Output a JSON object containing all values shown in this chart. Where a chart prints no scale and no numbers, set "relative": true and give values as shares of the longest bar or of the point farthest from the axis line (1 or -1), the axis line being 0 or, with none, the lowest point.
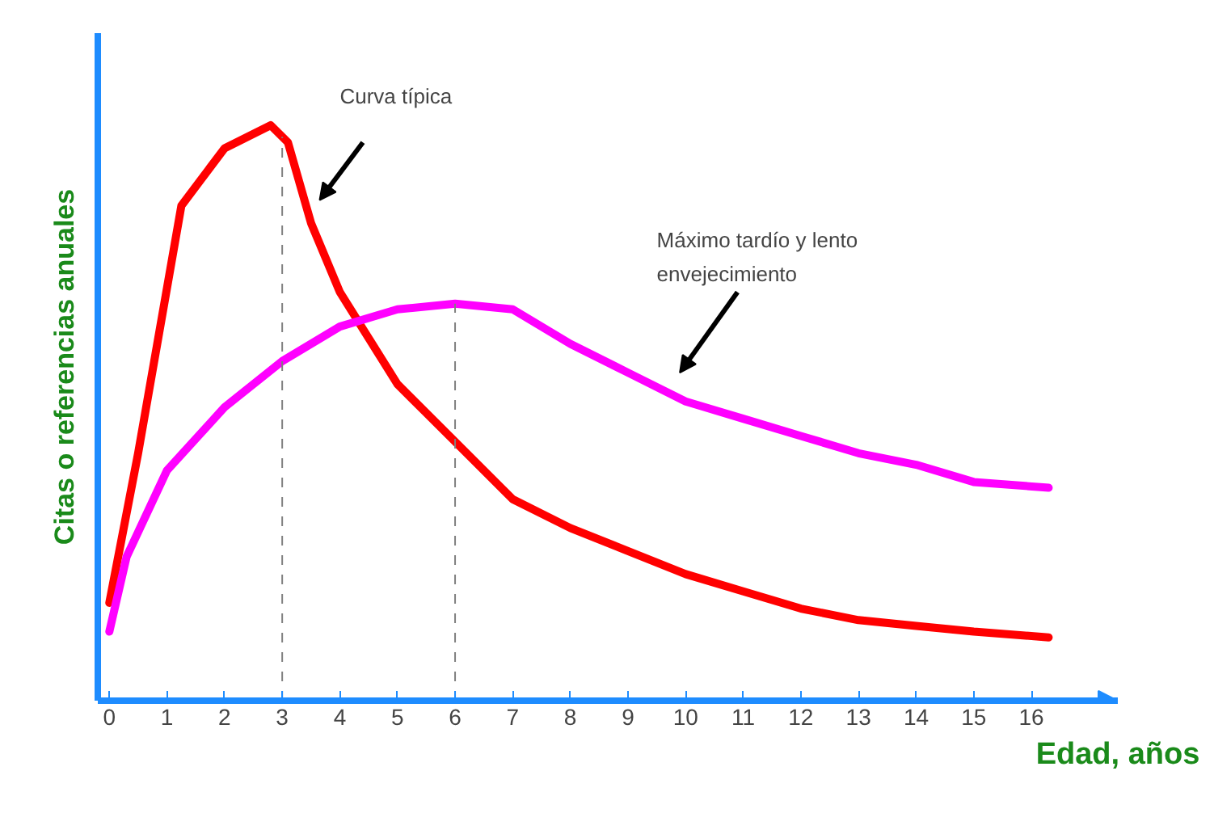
{
  "chart_data": {
    "type": "line",
    "relative": true,
    "xlabel": "Edad, años",
    "ylabel": "Citas o referencias anuales",
    "xlim": [
      -0.2,
      17.5
    ],
    "xticks": [
      0,
      1,
      2,
      3,
      4,
      5,
      6,
      7,
      8,
      9,
      10,
      11,
      12,
      13,
      14,
      15,
      16
    ],
    "grid": false,
    "marker": "none",
    "line_style": "solid",
    "series": [
      {
        "color": "#ff0000",
        "x": [
          0,
          0.5,
          1.25,
          2,
          2.8,
          3.1,
          3.5,
          4,
          5,
          6,
          7,
          8,
          9,
          10,
          11,
          12,
          13,
          14,
          15,
          16.3
        ],
        "values": [
          0.17,
          0.43,
          0.86,
          0.96,
          1.0,
          0.97,
          0.83,
          0.71,
          0.55,
          0.45,
          0.35,
          0.3,
          0.26,
          0.22,
          0.19,
          0.16,
          0.14,
          0.13,
          0.12,
          0.11
        ]
      },
      {
        "color": "#ff00ff",
        "x": [
          0,
          0.3,
          1,
          2,
          3,
          4,
          5,
          6,
          7,
          8,
          9,
          10,
          11,
          12,
          13,
          14,
          15,
          16.3
        ],
        "values": [
          0.12,
          0.25,
          0.4,
          0.51,
          0.59,
          0.65,
          0.68,
          0.69,
          0.68,
          0.62,
          0.57,
          0.52,
          0.49,
          0.46,
          0.43,
          0.41,
          0.38,
          0.37
        ]
      }
    ],
    "ref_lines": [
      {
        "axis": "x",
        "value": 3,
        "line_style": "dashed",
        "color": "#808080"
      },
      {
        "axis": "x",
        "value": 6,
        "line_style": "dashed",
        "color": "#808080"
      }
    ],
    "annotations": [
      "Curva típica",
      "Máximo tardío y lento\nenvejecimiento"
    ]
  }
}
